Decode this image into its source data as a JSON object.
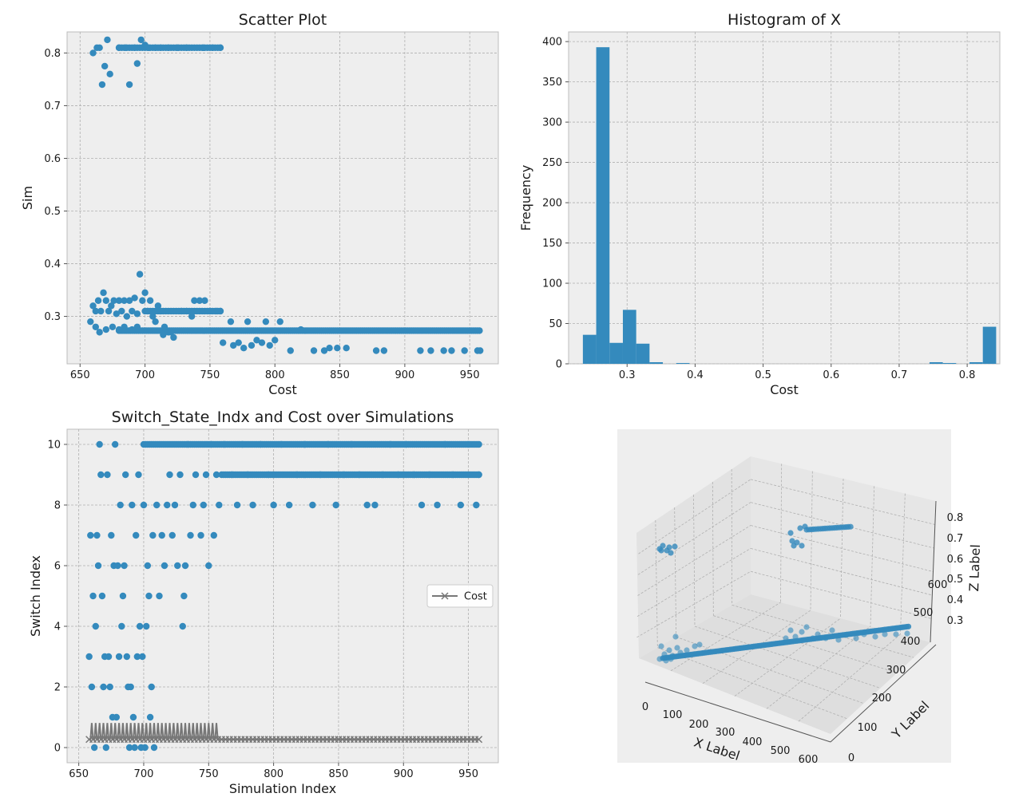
{
  "chart_data": [
    {
      "id": "scatter",
      "type": "scatter",
      "title": "Scatter Plot",
      "xlabel": "Cost",
      "ylabel": "Sim",
      "xlim": [
        640,
        972
      ],
      "ylim": [
        0.21,
        0.84
      ],
      "xticks": [
        650,
        700,
        750,
        800,
        850,
        900,
        950
      ],
      "yticks": [
        0.3,
        0.4,
        0.5,
        0.6,
        0.7,
        0.8
      ],
      "grid": true,
      "color": "#348ABD",
      "band_x": [
        680,
        958
      ],
      "band_y": 0.273,
      "points": [
        [
          660,
          0.8
        ],
        [
          663,
          0.81
        ],
        [
          665,
          0.81
        ],
        [
          667,
          0.74
        ],
        [
          669,
          0.775
        ],
        [
          671,
          0.825
        ],
        [
          673,
          0.76
        ],
        [
          680,
          0.81
        ],
        [
          685,
          0.81
        ],
        [
          688,
          0.74
        ],
        [
          692,
          0.81
        ],
        [
          694,
          0.78
        ],
        [
          697,
          0.825
        ],
        [
          700,
          0.815
        ],
        [
          703,
          0.81
        ],
        [
          708,
          0.81
        ],
        [
          712,
          0.81
        ],
        [
          718,
          0.81
        ],
        [
          725,
          0.81
        ],
        [
          732,
          0.81
        ],
        [
          745,
          0.81
        ],
        [
          752,
          0.81
        ],
        [
          758,
          0.81
        ],
        [
          658,
          0.29
        ],
        [
          660,
          0.32
        ],
        [
          662,
          0.31
        ],
        [
          664,
          0.33
        ],
        [
          666,
          0.31
        ],
        [
          668,
          0.345
        ],
        [
          670,
          0.33
        ],
        [
          672,
          0.31
        ],
        [
          674,
          0.32
        ],
        [
          676,
          0.33
        ],
        [
          678,
          0.305
        ],
        [
          680,
          0.33
        ],
        [
          682,
          0.31
        ],
        [
          684,
          0.33
        ],
        [
          686,
          0.3
        ],
        [
          688,
          0.33
        ],
        [
          690,
          0.31
        ],
        [
          692,
          0.335
        ],
        [
          694,
          0.305
        ],
        [
          696,
          0.38
        ],
        [
          698,
          0.33
        ],
        [
          700,
          0.345
        ],
        [
          702,
          0.31
        ],
        [
          704,
          0.33
        ],
        [
          706,
          0.3
        ],
        [
          708,
          0.29
        ],
        [
          710,
          0.32
        ],
        [
          712,
          0.31
        ],
        [
          715,
          0.28
        ],
        [
          718,
          0.27
        ],
        [
          722,
          0.26
        ],
        [
          728,
          0.31
        ],
        [
          732,
          0.31
        ],
        [
          736,
          0.3
        ],
        [
          738,
          0.33
        ],
        [
          742,
          0.33
        ],
        [
          746,
          0.33
        ],
        [
          750,
          0.31
        ],
        [
          755,
          0.31
        ],
        [
          758,
          0.31
        ],
        [
          662,
          0.28
        ],
        [
          665,
          0.27
        ],
        [
          670,
          0.275
        ],
        [
          675,
          0.28
        ],
        [
          680,
          0.275
        ],
        [
          684,
          0.28
        ],
        [
          690,
          0.275
        ],
        [
          694,
          0.28
        ],
        [
          714,
          0.265
        ],
        [
          720,
          0.27
        ],
        [
          760,
          0.25
        ],
        [
          766,
          0.29
        ],
        [
          768,
          0.245
        ],
        [
          772,
          0.25
        ],
        [
          776,
          0.24
        ],
        [
          779,
          0.29
        ],
        [
          782,
          0.245
        ],
        [
          786,
          0.255
        ],
        [
          790,
          0.25
        ],
        [
          793,
          0.29
        ],
        [
          796,
          0.245
        ],
        [
          800,
          0.255
        ],
        [
          804,
          0.29
        ],
        [
          812,
          0.235
        ],
        [
          820,
          0.275
        ],
        [
          830,
          0.235
        ],
        [
          838,
          0.235
        ],
        [
          842,
          0.24
        ],
        [
          848,
          0.24
        ],
        [
          855,
          0.24
        ],
        [
          878,
          0.235
        ],
        [
          884,
          0.235
        ],
        [
          912,
          0.235
        ],
        [
          920,
          0.235
        ],
        [
          930,
          0.235
        ],
        [
          936,
          0.235
        ],
        [
          946,
          0.235
        ],
        [
          956,
          0.235
        ],
        [
          958,
          0.235
        ]
      ]
    },
    {
      "id": "hist",
      "type": "bar",
      "title": "Histogram of X",
      "xlabel": "Cost",
      "ylabel": "Frequency",
      "xlim": [
        0.214,
        0.848
      ],
      "ylim": [
        0,
        412
      ],
      "xticks": [
        0.3,
        0.4,
        0.5,
        0.6,
        0.7,
        0.8
      ],
      "yticks": [
        0,
        50,
        100,
        150,
        200,
        250,
        300,
        350,
        400
      ],
      "grid": true,
      "color": "#348ABD",
      "bin_start": 0.235,
      "bin_width": 0.0196,
      "counts": [
        36,
        393,
        26,
        67,
        25,
        2,
        0,
        1,
        0,
        0,
        0,
        0,
        0,
        0,
        0,
        0,
        0,
        0,
        0,
        0,
        0,
        0,
        0,
        0,
        0,
        0,
        2,
        1,
        0,
        2,
        46
      ]
    },
    {
      "id": "line",
      "type": "scatter",
      "title": "Switch_State_Indx and Cost over Simulations",
      "xlabel": "Simulation Index",
      "ylabel": "Switch Index",
      "xlim": [
        641,
        973
      ],
      "ylim": [
        -0.5,
        10.5
      ],
      "xticks": [
        650,
        700,
        750,
        800,
        850,
        900,
        950
      ],
      "yticks": [
        0,
        2,
        4,
        6,
        8,
        10
      ],
      "grid": true,
      "legend": {
        "label": "Cost",
        "placement": "center-right"
      },
      "color_switch": "#348ABD",
      "color_cost": "#777777",
      "x_range": [
        658,
        958
      ],
      "switch_points": [
        [
          658,
          3
        ],
        [
          659,
          7
        ],
        [
          660,
          2
        ],
        [
          661,
          5
        ],
        [
          662,
          0
        ],
        [
          663,
          4
        ],
        [
          664,
          7
        ],
        [
          665,
          6
        ],
        [
          666,
          10
        ],
        [
          667,
          9
        ],
        [
          668,
          5
        ],
        [
          669,
          2
        ],
        [
          670,
          3
        ],
        [
          671,
          0
        ],
        [
          672,
          9
        ],
        [
          673,
          3
        ],
        [
          674,
          2
        ],
        [
          675,
          7
        ],
        [
          676,
          1
        ],
        [
          677,
          6
        ],
        [
          678,
          10
        ],
        [
          679,
          1
        ],
        [
          680,
          6
        ],
        [
          681,
          3
        ],
        [
          682,
          8
        ],
        [
          683,
          4
        ],
        [
          684,
          5
        ],
        [
          685,
          6
        ],
        [
          686,
          9
        ],
        [
          687,
          3
        ],
        [
          688,
          2
        ],
        [
          689,
          0
        ],
        [
          690,
          2
        ],
        [
          691,
          8
        ],
        [
          692,
          1
        ],
        [
          693,
          0
        ],
        [
          694,
          7
        ],
        [
          695,
          3
        ],
        [
          696,
          9
        ],
        [
          697,
          4
        ],
        [
          698,
          0
        ],
        [
          699,
          3
        ],
        [
          700,
          8
        ],
        [
          701,
          0
        ],
        [
          702,
          4
        ],
        [
          703,
          6
        ],
        [
          704,
          5
        ],
        [
          705,
          1
        ],
        [
          706,
          2
        ],
        [
          707,
          7
        ],
        [
          708,
          0
        ],
        [
          710,
          8
        ],
        [
          712,
          5
        ],
        [
          714,
          7
        ],
        [
          716,
          6
        ],
        [
          718,
          8
        ],
        [
          720,
          9
        ],
        [
          722,
          7
        ],
        [
          724,
          8
        ],
        [
          726,
          6
        ],
        [
          728,
          9
        ],
        [
          730,
          4
        ],
        [
          731,
          5
        ],
        [
          732,
          6
        ],
        [
          734,
          10
        ],
        [
          736,
          7
        ],
        [
          738,
          8
        ],
        [
          740,
          9
        ],
        [
          744,
          7
        ],
        [
          746,
          8
        ],
        [
          748,
          9
        ],
        [
          750,
          6
        ],
        [
          752,
          10
        ],
        [
          754,
          7
        ],
        [
          756,
          9
        ],
        [
          758,
          8
        ],
        [
          762,
          10
        ],
        [
          768,
          9
        ],
        [
          772,
          8
        ],
        [
          776,
          10
        ],
        [
          780,
          9
        ],
        [
          784,
          8
        ],
        [
          790,
          10
        ],
        [
          796,
          9
        ],
        [
          800,
          8
        ],
        [
          806,
          10
        ],
        [
          812,
          8
        ],
        [
          818,
          9
        ],
        [
          824,
          10
        ],
        [
          830,
          8
        ],
        [
          836,
          9
        ],
        [
          842,
          10
        ],
        [
          848,
          8
        ],
        [
          854,
          9
        ],
        [
          860,
          10
        ],
        [
          866,
          9
        ],
        [
          872,
          8
        ],
        [
          878,
          8
        ],
        [
          884,
          9
        ],
        [
          890,
          10
        ],
        [
          896,
          9
        ],
        [
          902,
          10
        ],
        [
          908,
          9
        ],
        [
          914,
          8
        ],
        [
          920,
          9
        ],
        [
          926,
          8
        ],
        [
          932,
          10
        ],
        [
          938,
          9
        ],
        [
          944,
          8
        ],
        [
          950,
          10
        ],
        [
          956,
          8
        ],
        [
          958,
          9
        ]
      ],
      "switch_bands": [
        [
          700,
          958,
          10
        ],
        [
          760,
          958,
          9
        ]
      ],
      "cost_noisy_range": [
        660,
        758
      ],
      "cost_low": 0.27,
      "cost_high": 0.81
    },
    {
      "id": "scatter3d",
      "type": "scatter",
      "xlabel": "X Label",
      "ylabel": "Y Label",
      "zlabel": "Z Label",
      "xticks": [
        0,
        100,
        200,
        300,
        400,
        500,
        600
      ],
      "yticks": [
        0,
        100,
        200,
        300,
        400,
        500,
        600
      ],
      "zticks": [
        0.3,
        0.4,
        0.5,
        0.6,
        0.7,
        0.8
      ],
      "color": "#348ABD"
    }
  ]
}
